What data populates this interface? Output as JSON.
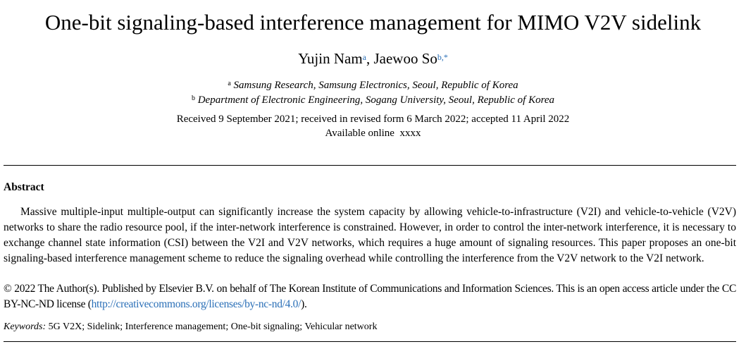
{
  "title": "One-bit signaling-based interference management for MIMO V2V sidelink",
  "authors": {
    "a1_name": "Yujin Nam",
    "a1_sup": "a",
    "separator": ", ",
    "a2_name": "Jaewoo So",
    "a2_sup": "b,",
    "corresponding": "*"
  },
  "affiliations": {
    "a_marker": "a",
    "a_text": "Samsung Research, Samsung Electronics, Seoul, Republic of Korea",
    "b_marker": "b",
    "b_text": "Department of Electronic Engineering, Sogang University, Seoul, Republic of Korea"
  },
  "dates": {
    "history": "Received 9 September 2021; received in revised form 6 March 2022; accepted 11 April 2022",
    "online": "Available online  xxxx"
  },
  "abstract": {
    "heading": "Abstract",
    "body": "Massive multiple-input multiple-output can significantly increase the system capacity by allowing vehicle-to-infrastructure (V2I) and vehicle-to-vehicle (V2V) networks to share the radio resource pool, if the inter-network interference is constrained. However, in order to control the inter-network interference, it is necessary to exchange channel state information (CSI) between the V2I and V2V networks, which requires a huge amount of signaling resources. This paper proposes an one-bit signaling-based interference management scheme to reduce the signaling overhead while controlling the interference from the V2V network to the V2I network.",
    "copyright_text": "© 2022 The Author(s). Published by Elsevier B.V. on behalf of The Korean Institute of Communications and Information Sciences. This is an open access article under the CC BY-NC-ND license (",
    "license_link": "http://creativecommons.org/licenses/by-nc-nd/4.0/",
    "copyright_end": ")."
  },
  "keywords": {
    "label": "Keywords:",
    "list": "5G V2X; Sidelink; Interference management; One-bit signaling; Vehicular network"
  },
  "colors": {
    "link": "#2a6fb7",
    "text": "#000000"
  }
}
